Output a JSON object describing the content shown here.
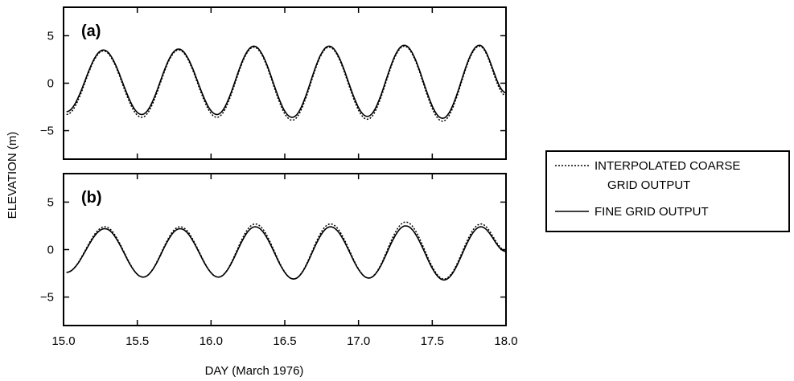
{
  "chart_data": [
    {
      "type": "line",
      "panel_label": "(a)",
      "ylabel": "ELEVATION (m)",
      "xlabel": "DAY (March 1976)",
      "xlim": [
        15.0,
        18.0
      ],
      "ylim": [
        -8,
        8
      ],
      "xticks": [
        "15.0",
        "15.5",
        "16.0",
        "16.5",
        "17.0",
        "17.5",
        "18.0"
      ],
      "yticks": [
        "5",
        "0",
        "−5"
      ],
      "series": [
        {
          "name": "INTERPOLATED COARSE GRID OUTPUT",
          "style": "dotted",
          "x": [
            15.02,
            15.27,
            15.53,
            15.78,
            16.04,
            16.29,
            16.55,
            16.8,
            17.06,
            17.31,
            17.57,
            17.82,
            18.0
          ],
          "y": [
            -3.3,
            3.4,
            -3.6,
            3.5,
            -3.6,
            3.8,
            -3.9,
            3.8,
            -3.8,
            3.9,
            -4.0,
            3.9,
            -1.3
          ]
        },
        {
          "name": "FINE GRID OUTPUT",
          "style": "solid",
          "x": [
            15.02,
            15.27,
            15.53,
            15.78,
            16.04,
            16.29,
            16.55,
            16.8,
            17.06,
            17.31,
            17.57,
            17.82,
            18.0
          ],
          "y": [
            -3.0,
            3.5,
            -3.3,
            3.6,
            -3.3,
            3.9,
            -3.6,
            3.9,
            -3.5,
            4.0,
            -3.7,
            4.0,
            -1.0
          ]
        }
      ]
    },
    {
      "type": "line",
      "panel_label": "(b)",
      "ylabel": "ELEVATION (m)",
      "xlabel": "DAY (March 1976)",
      "xlim": [
        15.0,
        18.0
      ],
      "ylim": [
        -8,
        8
      ],
      "xticks": [
        "15.0",
        "15.5",
        "16.0",
        "16.5",
        "17.0",
        "17.5",
        "18.0"
      ],
      "yticks": [
        "5",
        "0",
        "−5"
      ],
      "series": [
        {
          "name": "INTERPOLATED COARSE GRID OUTPUT",
          "style": "dotted",
          "x": [
            15.02,
            15.28,
            15.54,
            15.79,
            16.05,
            16.3,
            16.56,
            16.81,
            17.07,
            17.32,
            17.58,
            17.83,
            18.0
          ],
          "y": [
            -2.4,
            2.4,
            -2.9,
            2.4,
            -2.9,
            2.7,
            -3.1,
            2.7,
            -3.0,
            2.9,
            -3.1,
            2.7,
            -0.1
          ]
        },
        {
          "name": "FINE GRID OUTPUT",
          "style": "solid",
          "x": [
            15.02,
            15.28,
            15.54,
            15.79,
            16.05,
            16.3,
            16.56,
            16.81,
            17.07,
            17.32,
            17.58,
            17.83,
            18.0
          ],
          "y": [
            -2.4,
            2.2,
            -2.9,
            2.2,
            -2.9,
            2.4,
            -3.1,
            2.4,
            -3.0,
            2.5,
            -3.2,
            2.4,
            -0.2
          ]
        }
      ]
    }
  ],
  "legend": {
    "placement": "right",
    "entries": [
      {
        "style": "dotted",
        "lines": [
          "INTERPOLATED COARSE",
          "GRID OUTPUT"
        ]
      },
      {
        "style": "solid",
        "lines": [
          "FINE GRID OUTPUT"
        ]
      }
    ]
  },
  "colors": {
    "ink": "#000000",
    "background": "#ffffff"
  }
}
